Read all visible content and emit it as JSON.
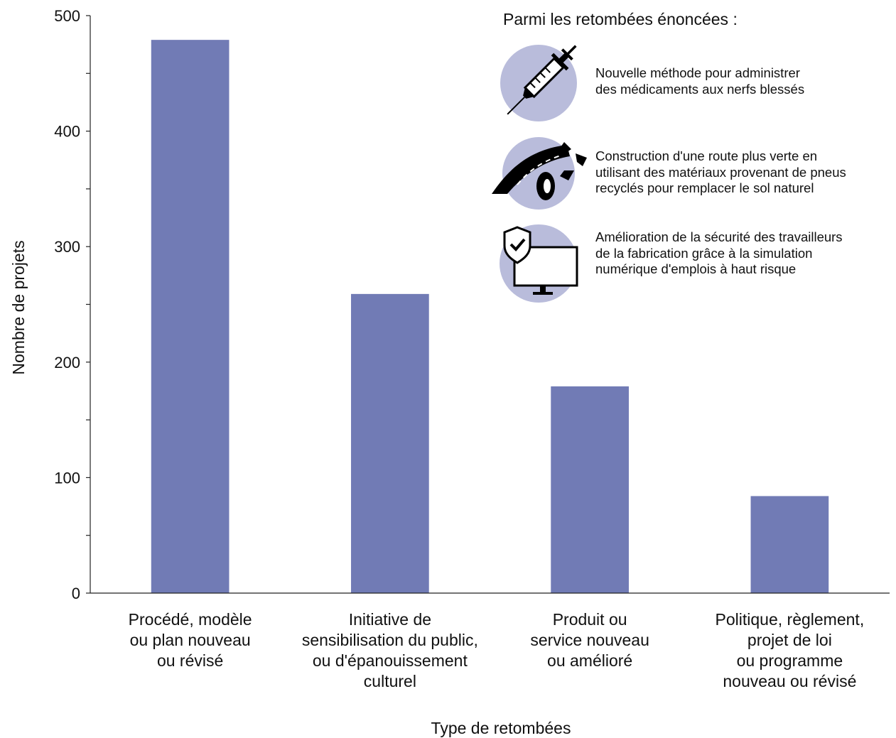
{
  "chart_data": {
    "type": "bar",
    "categories": [
      "Procédé, modèle\nou plan nouveau\nou révisé",
      "Initiative de\nsensibilisation du public,\nou d'épanouissement\nculturel",
      "Produit ou\nservice nouveau\nou amélioré",
      "Politique, règlement,\nprojet de loi\nou programme\nnouveau ou révisé"
    ],
    "values": [
      479,
      259,
      179,
      84
    ],
    "xlabel": "Type de retombées",
    "ylabel": "Nombre de projets",
    "ylim": [
      0,
      500
    ],
    "yticks": [
      0,
      100,
      200,
      300,
      400,
      500
    ],
    "grid": false,
    "bar_color": "#717bb5"
  },
  "callout": {
    "title": "Parmi les retombées énoncées :",
    "circle_color": "#b9bcdb",
    "items": [
      {
        "icon": "syringe-icon",
        "text": "Nouvelle méthode pour administrer\ndes médicaments aux nerfs blessés"
      },
      {
        "icon": "recycled-tire-road-icon",
        "text": "Construction d'une route plus verte en\nutilisant des matériaux provenant de pneus\nrecyclés pour remplacer le sol naturel"
      },
      {
        "icon": "secure-monitor-icon",
        "text": "Amélioration de la sécurité des travailleurs\nde la fabrication grâce à la simulation\nnumérique d'emplois à haut risque"
      }
    ]
  }
}
